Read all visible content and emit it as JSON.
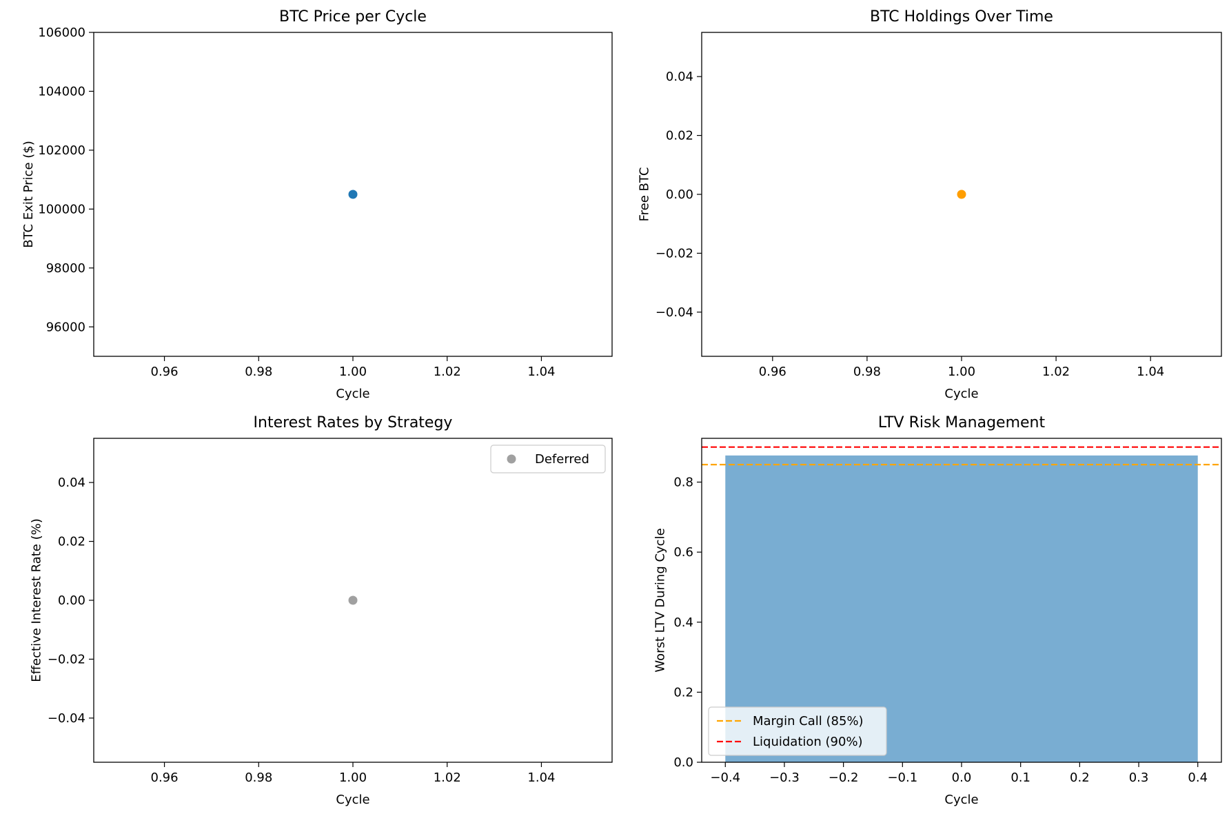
{
  "chart_data": [
    {
      "type": "scatter",
      "title": "BTC Price per Cycle",
      "xlabel": "Cycle",
      "ylabel": "BTC Exit Price ($)",
      "xlim": [
        0.945,
        1.055
      ],
      "ylim": [
        95000,
        106000
      ],
      "xticks": [
        0.96,
        0.98,
        1.0,
        1.02,
        1.04
      ],
      "xtick_labels": [
        "0.96",
        "0.98",
        "1.00",
        "1.02",
        "1.04"
      ],
      "yticks": [
        96000,
        98000,
        100000,
        102000,
        104000,
        106000
      ],
      "ytick_labels": [
        "96000",
        "98000",
        "100000",
        "102000",
        "104000",
        "106000"
      ],
      "series": [
        {
          "color": "#1f77b4",
          "points": [
            {
              "x": 1.0,
              "y": 100500
            }
          ]
        }
      ]
    },
    {
      "type": "scatter",
      "title": "BTC Holdings Over Time",
      "xlabel": "Cycle",
      "ylabel": "Free BTC",
      "xlim": [
        0.945,
        1.055
      ],
      "ylim": [
        -0.055,
        0.055
      ],
      "xticks": [
        0.96,
        0.98,
        1.0,
        1.02,
        1.04
      ],
      "xtick_labels": [
        "0.96",
        "0.98",
        "1.00",
        "1.02",
        "1.04"
      ],
      "yticks": [
        -0.04,
        -0.02,
        0.0,
        0.02,
        0.04
      ],
      "ytick_labels": [
        "−0.04",
        "−0.02",
        "0.00",
        "0.02",
        "0.04"
      ],
      "series": [
        {
          "color": "#ff9e00",
          "points": [
            {
              "x": 1.0,
              "y": 0.0
            }
          ]
        }
      ]
    },
    {
      "type": "scatter",
      "title": "Interest Rates by Strategy",
      "xlabel": "Cycle",
      "ylabel": "Effective Interest Rate (%)",
      "xlim": [
        0.945,
        1.055
      ],
      "ylim": [
        -0.055,
        0.055
      ],
      "xticks": [
        0.96,
        0.98,
        1.0,
        1.02,
        1.04
      ],
      "xtick_labels": [
        "0.96",
        "0.98",
        "1.00",
        "1.02",
        "1.04"
      ],
      "yticks": [
        -0.04,
        -0.02,
        0.0,
        0.02,
        0.04
      ],
      "ytick_labels": [
        "−0.04",
        "−0.02",
        "0.00",
        "0.02",
        "0.04"
      ],
      "legend": {
        "position": "upper right",
        "entries": [
          "Deferred"
        ]
      },
      "series": [
        {
          "name": "Deferred",
          "color": "#808080",
          "alpha": 0.75,
          "points": [
            {
              "x": 1.0,
              "y": 0.0
            }
          ]
        }
      ]
    },
    {
      "type": "bar",
      "title": "LTV Risk Management",
      "xlabel": "Cycle",
      "ylabel": "Worst LTV During Cycle",
      "xlim": [
        -0.44,
        0.44
      ],
      "ylim": [
        0,
        0.925
      ],
      "xticks": [
        -0.4,
        -0.3,
        -0.2,
        -0.1,
        0.0,
        0.1,
        0.2,
        0.3,
        0.4
      ],
      "xtick_labels": [
        "−0.4",
        "−0.3",
        "−0.2",
        "−0.1",
        "0.0",
        "0.1",
        "0.2",
        "0.3",
        "0.4"
      ],
      "yticks": [
        0.0,
        0.2,
        0.4,
        0.6,
        0.8
      ],
      "ytick_labels": [
        "0.0",
        "0.2",
        "0.4",
        "0.6",
        "0.8"
      ],
      "bars": [
        {
          "x": 0,
          "value": 0.876,
          "width": 0.8,
          "color": "#1f77b4",
          "alpha": 0.6
        }
      ],
      "hlines": [
        {
          "y": 0.85,
          "label": "Margin Call (85%)",
          "color": "#ffa500",
          "style": "dashed"
        },
        {
          "y": 0.9,
          "label": "Liquidation (90%)",
          "color": "#ff0000",
          "style": "dashed"
        }
      ],
      "legend": {
        "position": "lower left",
        "entries": [
          "Margin Call (85%)",
          "Liquidation (90%)"
        ]
      }
    }
  ]
}
